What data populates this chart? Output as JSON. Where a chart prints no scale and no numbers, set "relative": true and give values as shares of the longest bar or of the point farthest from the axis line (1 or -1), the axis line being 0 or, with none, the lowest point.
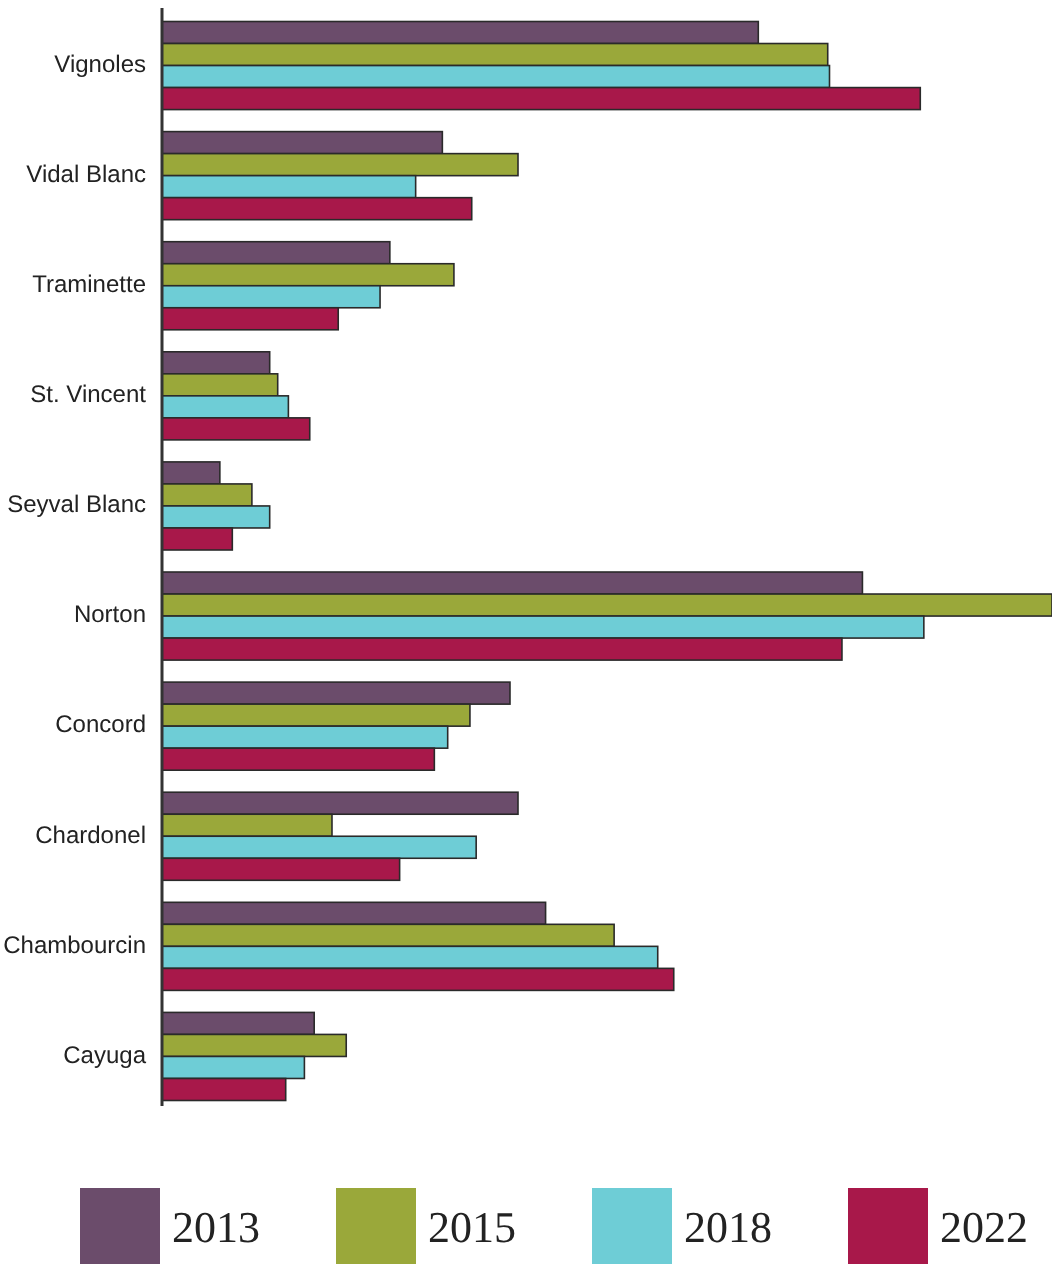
{
  "chart_data": {
    "type": "bar",
    "orientation": "horizontal",
    "relative": true,
    "legend": "bottom",
    "categories": [
      "Vignoles",
      "Vidal Blanc",
      "Traminette",
      "St. Vincent",
      "Seyval Blanc",
      "Norton",
      "Concord",
      "Chardonel",
      "Chambourcin",
      "Cayuga"
    ],
    "series": [
      {
        "name": "2013",
        "color": "#6b4c6b",
        "values": [
          0.67,
          0.315,
          0.256,
          0.121,
          0.065,
          0.787,
          0.391,
          0.4,
          0.431,
          0.171
        ]
      },
      {
        "name": "2015",
        "color": "#9aa83a",
        "values": [
          0.748,
          0.4,
          0.328,
          0.13,
          0.101,
          1,
          0.346,
          0.191,
          0.508,
          0.207
        ]
      },
      {
        "name": "2018",
        "color": "#6ecdd6",
        "values": [
          0.75,
          0.285,
          0.245,
          0.142,
          0.121,
          0.856,
          0.321,
          0.353,
          0.557,
          0.16
        ]
      },
      {
        "name": "2022",
        "color": "#a8184a",
        "values": [
          0.852,
          0.348,
          0.198,
          0.166,
          0.079,
          0.764,
          0.306,
          0.267,
          0.575,
          0.139
        ]
      }
    ]
  }
}
